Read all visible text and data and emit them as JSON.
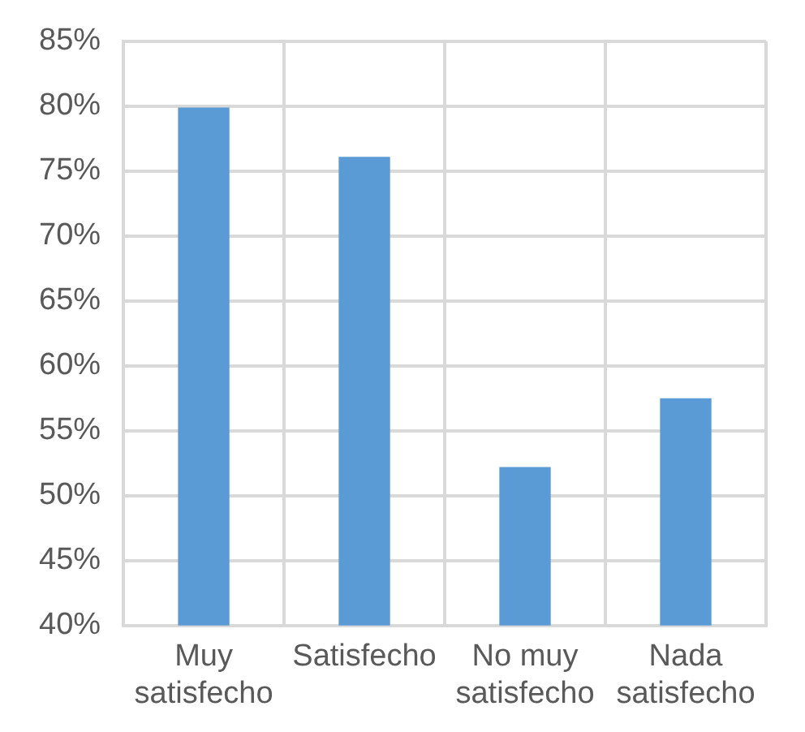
{
  "chart_data": {
    "type": "bar",
    "categories": [
      "Muy satisfecho",
      "Satisfecho",
      "No muy satisfecho",
      "Nada satisfecho"
    ],
    "values": [
      79.9,
      76.1,
      52.2,
      57.5
    ],
    "color": "#5b9bd5",
    "ylim": [
      40,
      85
    ],
    "yticks": [
      {
        "value": 40,
        "label": "40%"
      },
      {
        "value": 45,
        "label": "45%"
      },
      {
        "value": 50,
        "label": "50%"
      },
      {
        "value": 55,
        "label": "55%"
      },
      {
        "value": 60,
        "label": "60%"
      },
      {
        "value": 65,
        "label": "65%"
      },
      {
        "value": 70,
        "label": "70%"
      },
      {
        "value": 75,
        "label": "75%"
      },
      {
        "value": 80,
        "label": "80%"
      },
      {
        "value": 85,
        "label": "85%"
      }
    ],
    "grid": true
  }
}
